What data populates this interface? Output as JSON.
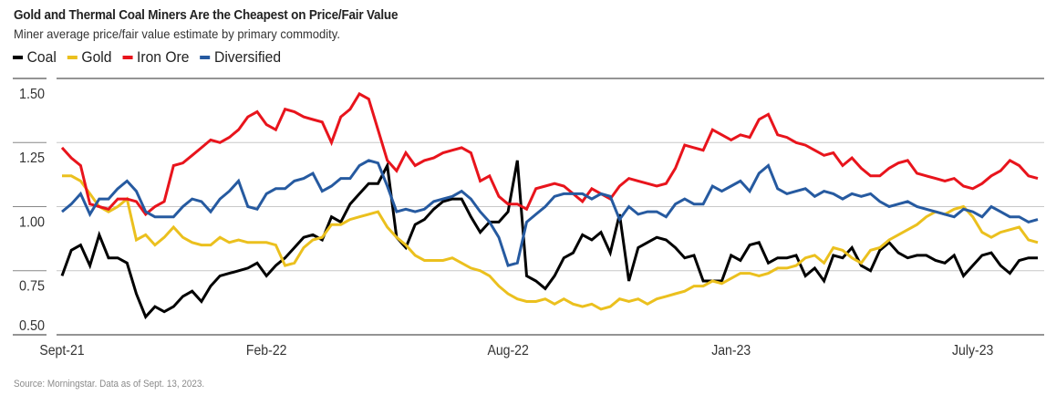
{
  "title": "Gold and Thermal Coal Miners Are the Cheapest on Price/Fair Value",
  "subtitle": "Miner average price/fair value estimate by primary commodity.",
  "source": "Source: Morningstar. Data as of Sept. 13, 2023.",
  "legend": [
    {
      "name": "Coal",
      "color": "#000000"
    },
    {
      "name": "Gold",
      "color": "#EBC01E"
    },
    {
      "name": "Iron Ore",
      "color": "#E8141C"
    },
    {
      "name": "Diversified",
      "color": "#265AA0"
    }
  ],
  "chart_data": {
    "type": "line",
    "title": "Gold and Thermal Coal Miners Are the Cheapest on Price/Fair Value",
    "subtitle": "Miner average price/fair value estimate by primary commodity.",
    "xlabel": "",
    "ylabel": "",
    "ylim": [
      0.5,
      1.5
    ],
    "yticks": [
      0.5,
      0.75,
      1.0,
      1.25,
      1.5
    ],
    "ytick_labels": [
      "0.50",
      "0.75",
      "1.00",
      "1.25",
      "1.50"
    ],
    "xtick_labels": [
      "Sept-21",
      "Feb-22",
      "Aug-22",
      "Jan-23",
      "July-23"
    ],
    "xtick_index": [
      0,
      22,
      48,
      72,
      98
    ],
    "grid": true,
    "legend_position": "top-left",
    "n_points": 106,
    "series": [
      {
        "name": "Coal",
        "color": "#000000",
        "values": [
          0.73,
          0.83,
          0.85,
          0.77,
          0.89,
          0.8,
          0.8,
          0.78,
          0.66,
          0.57,
          0.61,
          0.59,
          0.61,
          0.65,
          0.67,
          0.63,
          0.69,
          0.73,
          0.74,
          0.75,
          0.76,
          0.78,
          0.73,
          0.77,
          0.8,
          0.84,
          0.88,
          0.89,
          0.87,
          0.96,
          0.94,
          1.01,
          1.05,
          1.09,
          1.09,
          1.16,
          0.88,
          0.84,
          0.93,
          0.95,
          0.99,
          1.02,
          1.03,
          1.03,
          0.96,
          0.9,
          0.94,
          0.94,
          0.98,
          1.18,
          0.73,
          0.71,
          0.68,
          0.73,
          0.8,
          0.82,
          0.89,
          0.87,
          0.9,
          0.82,
          0.97,
          0.71,
          0.84,
          0.86,
          0.88,
          0.87,
          0.84,
          0.8,
          0.81,
          0.71,
          0.71,
          0.71,
          0.81,
          0.79,
          0.85,
          0.86,
          0.78,
          0.8,
          0.8,
          0.81,
          0.73,
          0.76,
          0.71,
          0.81,
          0.8,
          0.84,
          0.77,
          0.75,
          0.83,
          0.86,
          0.82,
          0.8,
          0.81,
          0.81,
          0.79,
          0.78,
          0.81,
          0.73,
          0.77,
          0.81,
          0.82,
          0.77,
          0.74,
          0.79,
          0.8,
          0.8
        ]
      },
      {
        "name": "Gold",
        "color": "#EBC01E",
        "values": [
          1.12,
          1.12,
          1.1,
          1.05,
          1.0,
          0.98,
          1.0,
          1.03,
          0.87,
          0.89,
          0.85,
          0.88,
          0.92,
          0.88,
          0.86,
          0.85,
          0.85,
          0.88,
          0.86,
          0.87,
          0.86,
          0.86,
          0.86,
          0.85,
          0.77,
          0.78,
          0.84,
          0.87,
          0.88,
          0.93,
          0.93,
          0.95,
          0.96,
          0.97,
          0.98,
          0.92,
          0.88,
          0.85,
          0.81,
          0.79,
          0.79,
          0.79,
          0.8,
          0.78,
          0.76,
          0.75,
          0.73,
          0.69,
          0.66,
          0.64,
          0.63,
          0.63,
          0.64,
          0.62,
          0.64,
          0.62,
          0.61,
          0.62,
          0.6,
          0.61,
          0.64,
          0.63,
          0.64,
          0.62,
          0.64,
          0.65,
          0.66,
          0.67,
          0.69,
          0.69,
          0.71,
          0.7,
          0.72,
          0.74,
          0.74,
          0.73,
          0.74,
          0.76,
          0.76,
          0.77,
          0.8,
          0.81,
          0.78,
          0.84,
          0.83,
          0.8,
          0.78,
          0.83,
          0.84,
          0.87,
          0.89,
          0.91,
          0.93,
          0.96,
          0.98,
          0.97,
          0.99,
          1.0,
          0.96,
          0.9,
          0.88,
          0.9,
          0.91,
          0.92,
          0.87,
          0.86
        ]
      },
      {
        "name": "Iron Ore",
        "color": "#E8141C",
        "values": [
          1.23,
          1.19,
          1.16,
          1.01,
          1.0,
          0.99,
          1.03,
          1.03,
          1.02,
          0.97,
          1.0,
          1.02,
          1.16,
          1.17,
          1.2,
          1.23,
          1.26,
          1.25,
          1.27,
          1.3,
          1.35,
          1.37,
          1.32,
          1.3,
          1.38,
          1.37,
          1.35,
          1.34,
          1.33,
          1.25,
          1.35,
          1.38,
          1.44,
          1.42,
          1.3,
          1.18,
          1.14,
          1.21,
          1.16,
          1.18,
          1.19,
          1.21,
          1.22,
          1.23,
          1.21,
          1.1,
          1.12,
          1.04,
          1.01,
          1.01,
          0.99,
          1.07,
          1.08,
          1.09,
          1.08,
          1.05,
          1.02,
          1.07,
          1.05,
          1.03,
          1.08,
          1.11,
          1.1,
          1.09,
          1.08,
          1.09,
          1.15,
          1.24,
          1.23,
          1.22,
          1.3,
          1.28,
          1.26,
          1.28,
          1.27,
          1.34,
          1.36,
          1.28,
          1.27,
          1.25,
          1.24,
          1.22,
          1.2,
          1.21,
          1.16,
          1.19,
          1.15,
          1.12,
          1.12,
          1.15,
          1.17,
          1.18,
          1.13,
          1.12,
          1.11,
          1.1,
          1.11,
          1.08,
          1.07,
          1.09,
          1.12,
          1.14,
          1.18,
          1.16,
          1.12,
          1.11
        ]
      },
      {
        "name": "Diversified",
        "color": "#265AA0",
        "values": [
          0.98,
          1.01,
          1.05,
          0.97,
          1.03,
          1.03,
          1.07,
          1.1,
          1.06,
          0.98,
          0.96,
          0.96,
          0.96,
          1.0,
          1.03,
          1.02,
          0.98,
          1.03,
          1.06,
          1.1,
          1.0,
          0.99,
          1.05,
          1.07,
          1.07,
          1.1,
          1.11,
          1.13,
          1.06,
          1.08,
          1.11,
          1.11,
          1.16,
          1.18,
          1.17,
          1.08,
          0.98,
          0.99,
          0.98,
          0.99,
          1.02,
          1.03,
          1.04,
          1.06,
          1.03,
          0.98,
          0.94,
          0.88,
          0.77,
          0.78,
          0.94,
          0.97,
          1.0,
          1.04,
          1.05,
          1.05,
          1.05,
          1.03,
          1.05,
          1.04,
          0.95,
          1.0,
          0.97,
          0.98,
          0.98,
          0.96,
          1.01,
          1.03,
          1.01,
          1.01,
          1.08,
          1.06,
          1.08,
          1.1,
          1.06,
          1.13,
          1.16,
          1.07,
          1.05,
          1.06,
          1.07,
          1.04,
          1.06,
          1.05,
          1.03,
          1.05,
          1.04,
          1.05,
          1.02,
          1.0,
          1.01,
          1.02,
          1.0,
          0.99,
          0.98,
          0.97,
          0.96,
          0.99,
          0.98,
          0.96,
          1.0,
          0.98,
          0.96,
          0.96,
          0.94,
          0.95
        ]
      }
    ]
  }
}
